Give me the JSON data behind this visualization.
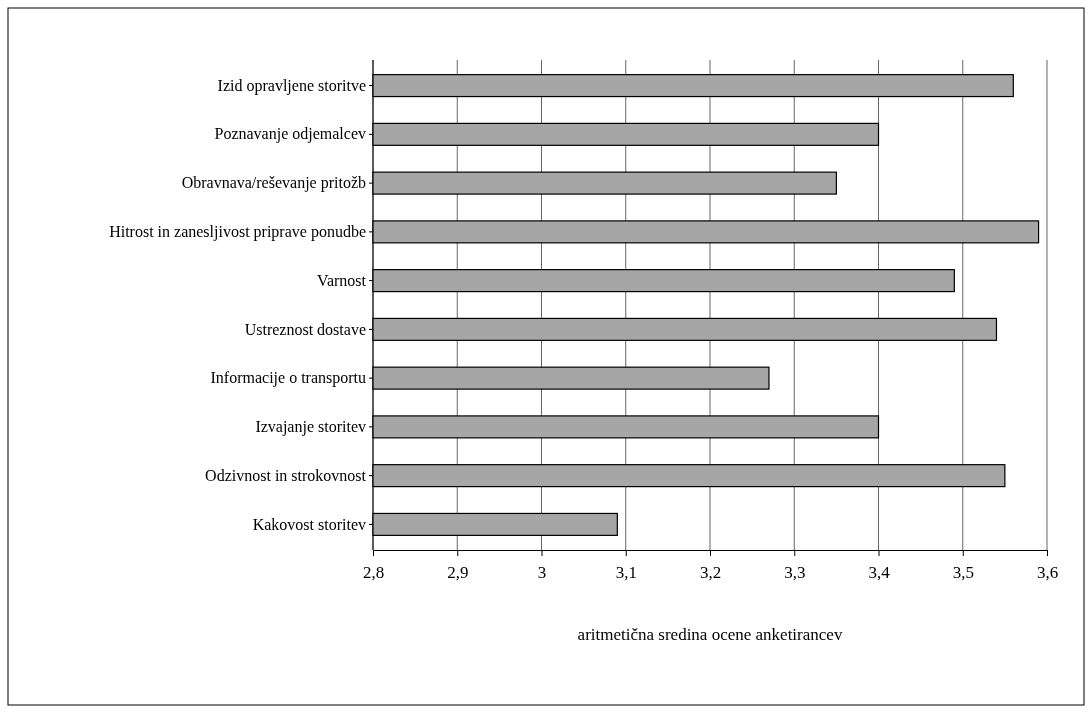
{
  "chart_data": {
    "type": "bar",
    "orientation": "horizontal",
    "xlabel": "aritmetična sredina ocene anketirancev",
    "categories": [
      "Izid opravljene storitve",
      "Poznavanje odjemalcev",
      "Obravnava/reševanje pritožb",
      "Hitrost in zanesljivost priprave ponudbe",
      "Varnost",
      "Ustreznost dostave",
      "Informacije o transportu",
      "Izvajanje storitev",
      "Odzivnost in strokovnost",
      "Kakovost storitev"
    ],
    "values": [
      3.56,
      3.4,
      3.35,
      3.59,
      3.49,
      3.54,
      3.27,
      3.4,
      3.55,
      3.09
    ],
    "color": "#a6a6a6",
    "xlim": [
      2.8,
      3.6
    ],
    "xticks": [
      {
        "value": 2.8,
        "label": "2,8"
      },
      {
        "value": 2.9,
        "label": "2,9"
      },
      {
        "value": 3,
        "label": "3"
      },
      {
        "value": 3.1,
        "label": "3,1"
      },
      {
        "value": 3.2,
        "label": "3,2"
      },
      {
        "value": 3.3,
        "label": "3,3"
      },
      {
        "value": 3.4,
        "label": "3,4"
      },
      {
        "value": 3.5,
        "label": "3,5"
      },
      {
        "value": 3.6,
        "label": "3,6"
      }
    ],
    "grid": "x"
  }
}
